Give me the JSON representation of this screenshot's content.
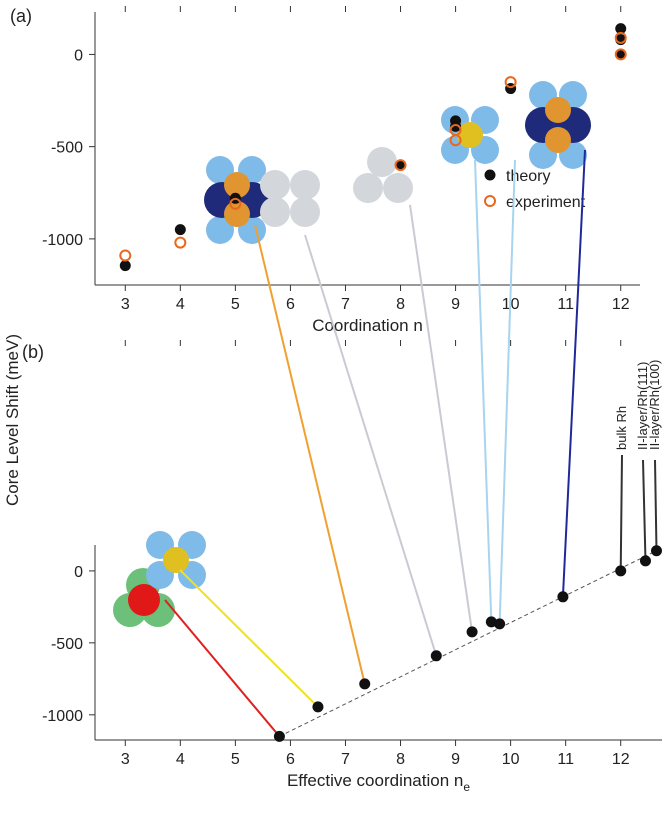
{
  "ylabel": "Core Level Shift (meV)",
  "chart_data": [
    {
      "type": "scatter",
      "panel": "(a)",
      "xlabel": "Coordination n",
      "xlim": [
        2.45,
        12.35
      ],
      "xticks": [
        3,
        4,
        5,
        6,
        7,
        8,
        9,
        10,
        11,
        12
      ],
      "ylim": [
        -1250,
        230
      ],
      "yticks": [
        0,
        -500,
        -1000
      ],
      "legend": "lower right",
      "series": [
        {
          "name": "theory",
          "color": "#111111",
          "marker": "filled",
          "x": [
            3,
            4,
            5,
            8,
            9,
            9,
            10,
            12,
            12,
            12
          ],
          "values": [
            -1145,
            -950,
            -780,
            -600,
            -360,
            -390,
            -185,
            140,
            80,
            0
          ]
        },
        {
          "name": "experiment",
          "color": "#e8681e",
          "marker": "open",
          "x": [
            3,
            4,
            5,
            8,
            9,
            9,
            10,
            12,
            12
          ],
          "values": [
            -1090,
            -1020,
            -810,
            -600,
            -410,
            -465,
            -150,
            90,
            0
          ]
        }
      ]
    },
    {
      "type": "scatter",
      "panel": "(b)",
      "xlabel": "Effective coordination n",
      "xlabel_sub": "e",
      "xlim": [
        2.45,
        12.75
      ],
      "xticks": [
        3,
        4,
        5,
        6,
        7,
        8,
        9,
        10,
        11,
        12
      ],
      "ylim": [
        -1175,
        180
      ],
      "yticks": [
        0,
        -500,
        -1000
      ],
      "series": [
        {
          "color": "#111111",
          "marker": "filled",
          "x": [
            5.8,
            6.5,
            7.35,
            8.65,
            9.3,
            9.65,
            9.8,
            10.95,
            12,
            12.45,
            12.65
          ],
          "values": [
            -1150,
            -945,
            -785,
            -590,
            -424,
            -354,
            -368,
            -180,
            0,
            70,
            140
          ]
        }
      ],
      "annotations": [
        "bulk Rh",
        "II-layer/Rh(111)",
        "II-layer/Rh(100)"
      ]
    }
  ]
}
